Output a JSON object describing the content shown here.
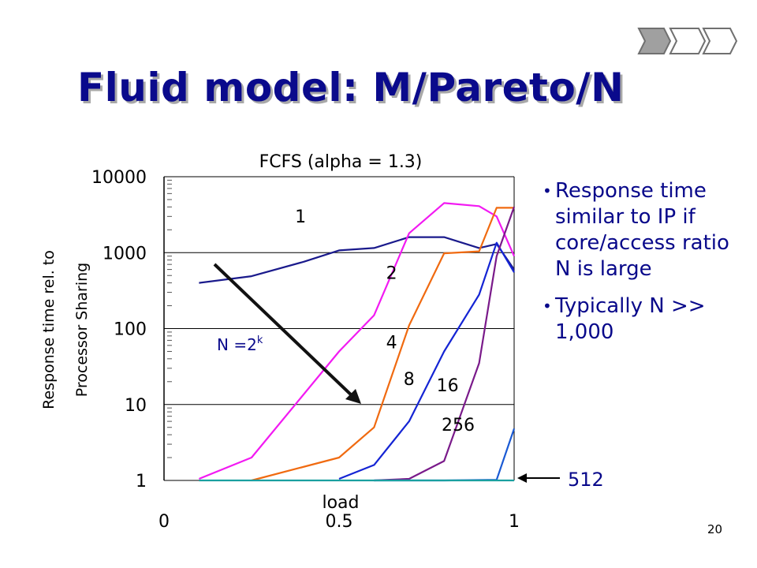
{
  "slide": {
    "title": "Fluid model: M/Pareto/N",
    "page_number": "20",
    "bullets": [
      "Response time similar to IP if core/access ratio N is large",
      "Typically N >> 1,000"
    ],
    "callout": "512"
  },
  "chart_data": {
    "type": "line",
    "title": "FCFS (alpha = 1.3)",
    "xlabel": "load",
    "ylabel_lines": [
      "Response time rel. to",
      "Processor Sharing"
    ],
    "yscale": "log",
    "ylim": [
      1,
      10000
    ],
    "xlim": [
      0,
      1
    ],
    "x_ticks": [
      "0",
      "0.5",
      "1"
    ],
    "y_ticks": [
      "10000",
      "1000",
      "100",
      "10",
      "1"
    ],
    "grid": "horizontal",
    "annotation_formula": {
      "base": "N =2",
      "exp": "k"
    },
    "series": [
      {
        "name": "1",
        "color": "#1a1a8c",
        "x": [
          0.1,
          0.25,
          0.4,
          0.5,
          0.6,
          0.7,
          0.8,
          0.9,
          0.95,
          1.0
        ],
        "y": [
          400,
          490,
          760,
          1070,
          1150,
          1600,
          1600,
          1150,
          1300,
          600
        ]
      },
      {
        "name": "2",
        "color": "#f21af2",
        "x": [
          0.1,
          0.25,
          0.5,
          0.6,
          0.7,
          0.8,
          0.9,
          0.95,
          1.0
        ],
        "y": [
          1.05,
          2,
          50,
          150,
          1800,
          4500,
          4100,
          3000,
          900
        ]
      },
      {
        "name": "4",
        "color": "#f06a10",
        "x": [
          0.25,
          0.5,
          0.6,
          0.7,
          0.8,
          0.9,
          0.95,
          1.0
        ],
        "y": [
          1.0,
          2,
          5,
          110,
          980,
          1040,
          3900,
          3900
        ]
      },
      {
        "name": "8",
        "color": "#1424d4",
        "x": [
          0.5,
          0.6,
          0.7,
          0.8,
          0.9,
          0.95,
          1.0
        ],
        "y": [
          1.05,
          1.6,
          6,
          50,
          280,
          1350,
          550
        ]
      },
      {
        "name": "16",
        "color": "#7a1a8a",
        "x": [
          0.6,
          0.7,
          0.8,
          0.9,
          0.95,
          1.0
        ],
        "y": [
          1.0,
          1.05,
          1.8,
          35,
          900,
          4000
        ]
      },
      {
        "name": "256",
        "color": "#1a5ad4",
        "x": [
          0.6,
          0.8,
          0.95,
          1.0
        ],
        "y": [
          1.0,
          1.0,
          1.02,
          4.8
        ]
      },
      {
        "name": "512",
        "color": "#1aa0a0",
        "x": [
          0.1,
          0.5,
          1.0
        ],
        "y": [
          1.0,
          1.0,
          1.0
        ]
      }
    ],
    "series_labels": [
      {
        "text": "1",
        "x": 0.39,
        "y": 2500
      },
      {
        "text": "2",
        "x": 0.65,
        "y": 450
      },
      {
        "text": "4",
        "x": 0.65,
        "y": 55
      },
      {
        "text": "8",
        "x": 0.7,
        "y": 18
      },
      {
        "text": "16",
        "x": 0.81,
        "y": 15
      },
      {
        "text": "256",
        "x": 0.84,
        "y": 4.5
      }
    ]
  }
}
